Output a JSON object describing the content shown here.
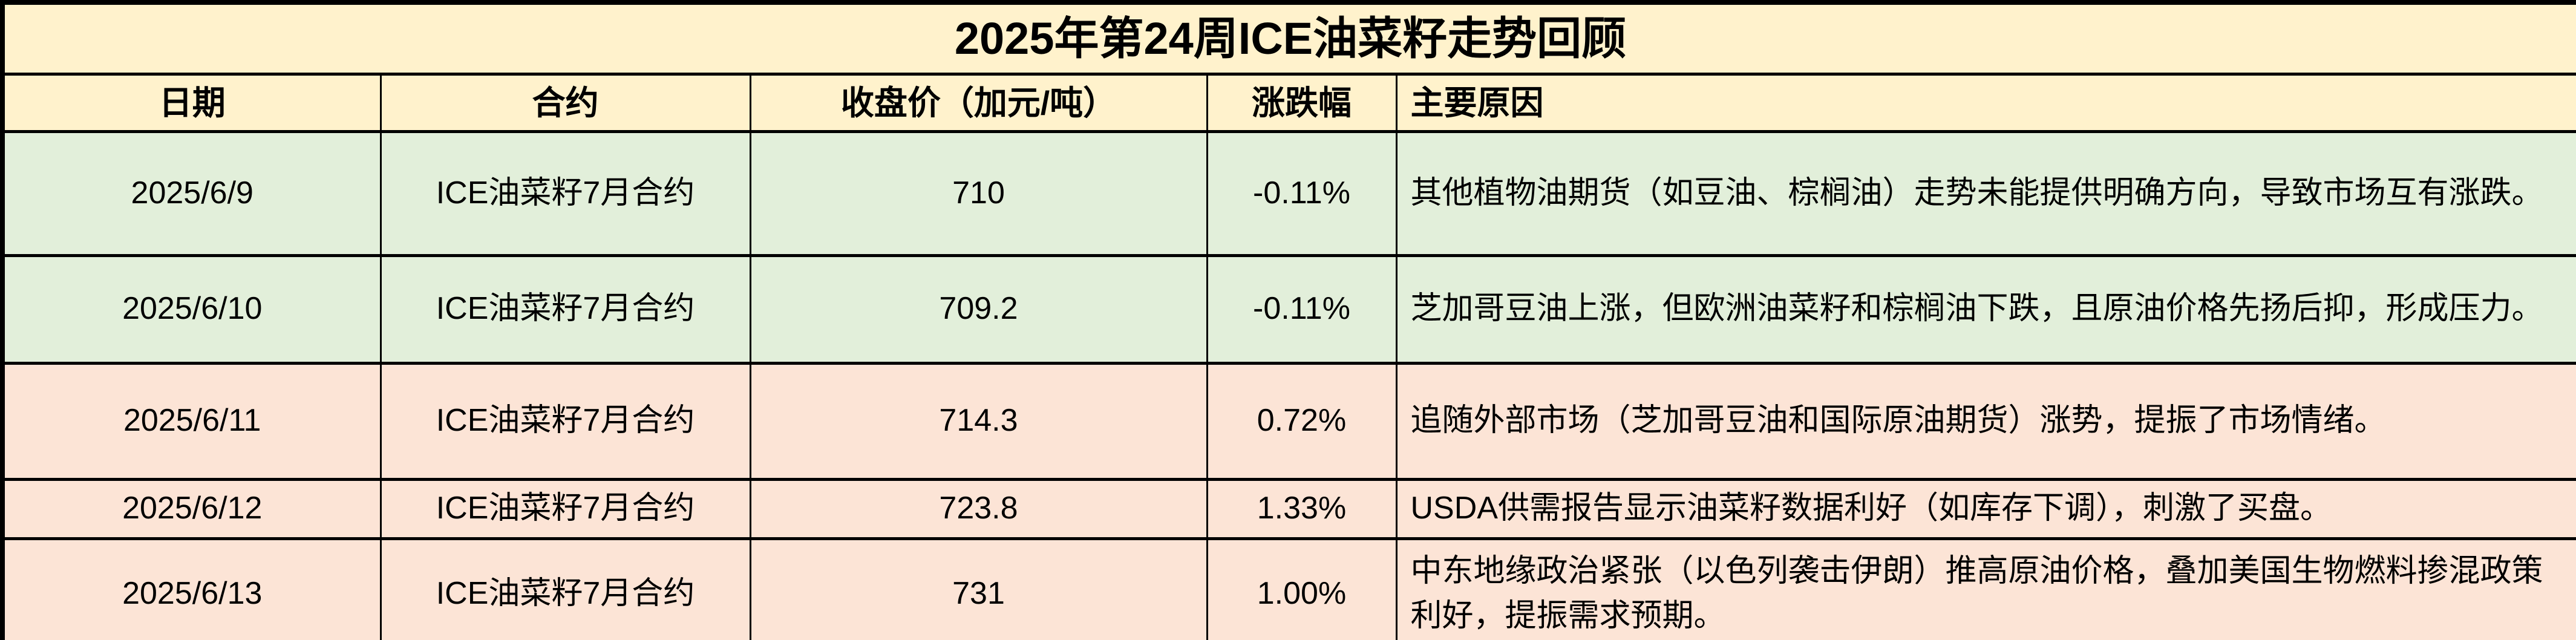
{
  "table": {
    "title": "2025年第24周ICE油菜籽走势回顾",
    "columns": [
      "日期",
      "合约",
      "收盘价（加元/吨）",
      "涨跌幅",
      "主要原因"
    ],
    "rows": [
      {
        "date": "2025/6/9",
        "contract": "ICE油菜籽7月合约",
        "close": "710",
        "change": "-0.11%",
        "reason": "其他植物油期货（如豆油、棕榈油）走势未能提供明确方向，导致市场互有涨跌。",
        "tone": "down"
      },
      {
        "date": "2025/6/10",
        "contract": "ICE油菜籽7月合约",
        "close": "709.2",
        "change": "-0.11%",
        "reason": "芝加哥豆油上涨，但欧洲油菜籽和棕榈油下跌，且原油价格先扬后抑，形成压力。",
        "tone": "down"
      },
      {
        "date": "2025/6/11",
        "contract": "ICE油菜籽7月合约",
        "close": "714.3",
        "change": "0.72%",
        "reason": "追随外部市场（芝加哥豆油和国际原油期货）涨势，提振了市场情绪。",
        "tone": "up"
      },
      {
        "date": "2025/6/12",
        "contract": "ICE油菜籽7月合约",
        "close": "723.8",
        "change": "1.33%",
        "reason": "USDA供需报告显示油菜籽数据利好（如库存下调），刺激了买盘。",
        "tone": "up"
      },
      {
        "date": "2025/6/13",
        "contract": "ICE油菜籽7月合约",
        "close": "731",
        "change": "1.00%",
        "reason": "中东地缘政治紧张（以色列袭击伊朗）推高原油价格，叠加美国生物燃料掺混政策利好，提振需求预期。",
        "tone": "up"
      }
    ]
  },
  "colors": {
    "title_bg": "#FFF2CC",
    "header_bg": "#FFF2CC",
    "down_row_bg": "#E2EFDA",
    "up_row_bg": "#FCE4D6",
    "border": "#000000",
    "text": "#000000"
  }
}
